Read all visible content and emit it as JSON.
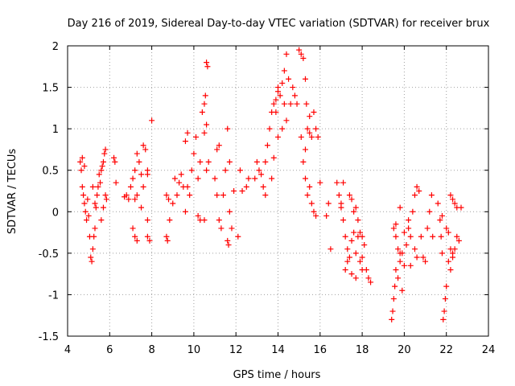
{
  "chart_data": {
    "type": "scatter",
    "title": "Day 216 of 2019, Sidereal Day-to-day VTEC variation (SDTVAR) for receiver brux",
    "xlabel": "GPS time / hours",
    "ylabel": "SDTVAR / TECUs",
    "xlim": [
      4,
      24
    ],
    "ylim": [
      -1.5,
      2
    ],
    "xticks": [
      "4",
      "6",
      "8",
      "10",
      "12",
      "14",
      "16",
      "18",
      "20",
      "22",
      "24"
    ],
    "yticks": [
      "-1.5",
      "-1",
      "-0.5",
      "0",
      "0.5",
      "1",
      "1.5",
      "2"
    ],
    "grid": true,
    "marker": "+",
    "color": "#ff0000",
    "series": [
      {
        "name": "SDTVAR",
        "points": [
          [
            4.6,
            0.6
          ],
          [
            4.65,
            0.5
          ],
          [
            4.7,
            0.3
          ],
          [
            4.75,
            0.2
          ],
          [
            4.8,
            0.1
          ],
          [
            4.85,
            0.0
          ],
          [
            4.9,
            -0.1
          ],
          [
            4.95,
            0.15
          ],
          [
            5.0,
            -0.05
          ],
          [
            5.05,
            -0.3
          ],
          [
            5.1,
            -0.55
          ],
          [
            5.15,
            -0.6
          ],
          [
            5.2,
            -0.45
          ],
          [
            5.25,
            -0.3
          ],
          [
            5.3,
            -0.2
          ],
          [
            5.35,
            0.05
          ],
          [
            5.4,
            0.2
          ],
          [
            5.45,
            0.3
          ],
          [
            5.5,
            0.45
          ],
          [
            5.55,
            0.35
          ],
          [
            5.6,
            0.5
          ],
          [
            5.65,
            0.55
          ],
          [
            5.7,
            0.6
          ],
          [
            5.75,
            0.7
          ],
          [
            5.8,
            0.75
          ],
          [
            5.6,
            -0.1
          ],
          [
            5.7,
            0.05
          ],
          [
            5.8,
            0.2
          ],
          [
            5.85,
            0.15
          ],
          [
            5.2,
            0.3
          ],
          [
            5.3,
            0.1
          ],
          [
            4.7,
            0.65
          ],
          [
            4.8,
            0.55
          ],
          [
            6.2,
            0.65
          ],
          [
            6.25,
            0.6
          ],
          [
            6.3,
            0.35
          ],
          [
            6.7,
            0.18
          ],
          [
            6.8,
            0.2
          ],
          [
            6.9,
            0.15
          ],
          [
            7.0,
            0.3
          ],
          [
            7.1,
            0.4
          ],
          [
            7.2,
            0.5
          ],
          [
            7.3,
            0.7
          ],
          [
            7.4,
            0.6
          ],
          [
            7.1,
            -0.2
          ],
          [
            7.2,
            -0.3
          ],
          [
            7.3,
            -0.35
          ],
          [
            7.6,
            0.8
          ],
          [
            7.7,
            0.75
          ],
          [
            7.8,
            0.5
          ],
          [
            7.5,
            0.45
          ],
          [
            7.6,
            0.3
          ],
          [
            7.2,
            0.15
          ],
          [
            7.3,
            0.2
          ],
          [
            7.5,
            0.05
          ],
          [
            7.8,
            -0.3
          ],
          [
            7.9,
            -0.35
          ],
          [
            7.8,
            -0.1
          ],
          [
            7.8,
            0.45
          ],
          [
            8.0,
            1.1
          ],
          [
            8.7,
            -0.3
          ],
          [
            8.75,
            -0.35
          ],
          [
            8.8,
            0.15
          ],
          [
            8.7,
            0.2
          ],
          [
            8.85,
            -0.1
          ],
          [
            9.0,
            0.1
          ],
          [
            9.1,
            0.4
          ],
          [
            9.2,
            0.2
          ],
          [
            9.3,
            0.35
          ],
          [
            9.4,
            0.45
          ],
          [
            9.5,
            0.3
          ],
          [
            9.6,
            0.0
          ],
          [
            9.7,
            0.3
          ],
          [
            9.8,
            0.2
          ],
          [
            9.9,
            0.5
          ],
          [
            10.0,
            0.7
          ],
          [
            10.1,
            0.9
          ],
          [
            10.2,
            0.4
          ],
          [
            10.3,
            0.6
          ],
          [
            10.4,
            1.2
          ],
          [
            10.5,
            1.3
          ],
          [
            10.55,
            1.4
          ],
          [
            10.6,
            1.05
          ],
          [
            10.7,
            0.6
          ],
          [
            10.5,
            0.95
          ],
          [
            10.6,
            0.5
          ],
          [
            10.2,
            -0.05
          ],
          [
            10.3,
            -0.1
          ],
          [
            10.6,
            1.8
          ],
          [
            10.65,
            1.75
          ],
          [
            10.5,
            -0.1
          ],
          [
            9.6,
            0.85
          ],
          [
            9.7,
            0.95
          ],
          [
            11.0,
            0.4
          ],
          [
            11.1,
            0.2
          ],
          [
            11.2,
            -0.1
          ],
          [
            11.3,
            -0.2
          ],
          [
            11.4,
            0.2
          ],
          [
            11.5,
            0.5
          ],
          [
            11.6,
            -0.35
          ],
          [
            11.65,
            -0.4
          ],
          [
            11.7,
            0.0
          ],
          [
            11.8,
            -0.2
          ],
          [
            11.9,
            0.25
          ],
          [
            11.6,
            1.0
          ],
          [
            11.7,
            0.6
          ],
          [
            11.1,
            0.75
          ],
          [
            11.2,
            0.8
          ],
          [
            12.1,
            -0.3
          ],
          [
            12.2,
            0.5
          ],
          [
            12.3,
            0.25
          ],
          [
            12.5,
            0.3
          ],
          [
            12.6,
            0.4
          ],
          [
            12.9,
            0.4
          ],
          [
            13.0,
            0.6
          ],
          [
            13.1,
            0.5
          ],
          [
            13.2,
            0.45
          ],
          [
            13.3,
            0.3
          ],
          [
            13.4,
            0.6
          ],
          [
            13.5,
            0.8
          ],
          [
            13.6,
            1.0
          ],
          [
            13.7,
            1.2
          ],
          [
            13.8,
            1.3
          ],
          [
            13.9,
            1.2
          ],
          [
            14.0,
            1.45
          ],
          [
            14.1,
            1.4
          ],
          [
            14.2,
            1.55
          ],
          [
            14.3,
            1.7
          ],
          [
            14.4,
            1.9
          ],
          [
            14.5,
            1.6
          ],
          [
            14.6,
            1.3
          ],
          [
            14.7,
            1.5
          ],
          [
            14.8,
            1.4
          ],
          [
            14.9,
            1.3
          ],
          [
            15.0,
            1.95
          ],
          [
            15.1,
            1.9
          ],
          [
            15.2,
            1.85
          ],
          [
            15.3,
            1.6
          ],
          [
            15.35,
            1.3
          ],
          [
            15.4,
            1.0
          ],
          [
            15.5,
            1.15
          ],
          [
            15.6,
            0.9
          ],
          [
            15.7,
            1.2
          ],
          [
            15.8,
            1.0
          ],
          [
            15.9,
            0.9
          ],
          [
            16.0,
            0.35
          ],
          [
            14.3,
            1.3
          ],
          [
            14.4,
            1.1
          ],
          [
            14.0,
            0.9
          ],
          [
            13.8,
            0.65
          ],
          [
            14.2,
            1.0
          ],
          [
            13.4,
            0.2
          ],
          [
            13.7,
            0.4
          ],
          [
            15.1,
            0.9
          ],
          [
            15.2,
            0.6
          ],
          [
            15.3,
            0.4
          ],
          [
            15.4,
            0.2
          ],
          [
            15.5,
            0.3
          ],
          [
            15.6,
            0.1
          ],
          [
            15.7,
            0.0
          ],
          [
            15.8,
            -0.05
          ],
          [
            14.0,
            1.5
          ],
          [
            13.9,
            1.35
          ],
          [
            15.3,
            0.75
          ],
          [
            15.5,
            0.95
          ],
          [
            16.5,
            -0.45
          ],
          [
            16.3,
            -0.05
          ],
          [
            16.4,
            0.1
          ],
          [
            16.9,
            0.2
          ],
          [
            17.0,
            0.05
          ],
          [
            17.1,
            -0.1
          ],
          [
            17.2,
            -0.3
          ],
          [
            17.3,
            -0.45
          ],
          [
            17.4,
            -0.55
          ],
          [
            17.5,
            -0.35
          ],
          [
            17.6,
            -0.25
          ],
          [
            17.7,
            -0.5
          ],
          [
            17.8,
            -0.3
          ],
          [
            17.9,
            -0.6
          ],
          [
            18.0,
            -0.55
          ],
          [
            18.1,
            -0.4
          ],
          [
            18.2,
            -0.7
          ],
          [
            18.3,
            -0.8
          ],
          [
            18.4,
            -0.85
          ],
          [
            17.4,
            0.2
          ],
          [
            17.5,
            0.15
          ],
          [
            17.6,
            0.0
          ],
          [
            17.7,
            0.05
          ],
          [
            17.8,
            -0.1
          ],
          [
            17.9,
            -0.25
          ],
          [
            18.0,
            -0.3
          ],
          [
            17.2,
            -0.7
          ],
          [
            17.3,
            -0.6
          ],
          [
            17.5,
            -0.75
          ],
          [
            17.7,
            -0.8
          ],
          [
            18.0,
            -0.7
          ],
          [
            17.1,
            0.35
          ],
          [
            16.8,
            0.35
          ],
          [
            17.0,
            0.1
          ],
          [
            19.4,
            -1.3
          ],
          [
            19.45,
            -1.2
          ],
          [
            19.5,
            -1.05
          ],
          [
            19.55,
            -0.9
          ],
          [
            19.6,
            -0.7
          ],
          [
            19.7,
            -0.8
          ],
          [
            19.8,
            -0.6
          ],
          [
            19.9,
            -0.5
          ],
          [
            20.0,
            -0.65
          ],
          [
            19.5,
            -0.2
          ],
          [
            19.6,
            -0.3
          ],
          [
            19.7,
            -0.45
          ],
          [
            19.8,
            -0.5
          ],
          [
            20.2,
            -0.2
          ],
          [
            20.3,
            -0.3
          ],
          [
            20.4,
            0.0
          ],
          [
            20.5,
            0.2
          ],
          [
            20.6,
            0.3
          ],
          [
            20.7,
            0.25
          ],
          [
            20.8,
            -0.3
          ],
          [
            20.9,
            -0.55
          ],
          [
            20.5,
            -0.45
          ],
          [
            20.6,
            -0.55
          ],
          [
            20.0,
            -0.25
          ],
          [
            20.1,
            -0.4
          ],
          [
            19.9,
            -0.95
          ],
          [
            20.3,
            -0.65
          ],
          [
            19.6,
            -0.15
          ],
          [
            19.8,
            0.05
          ],
          [
            20.2,
            -0.1
          ],
          [
            21.0,
            -0.6
          ],
          [
            21.1,
            -0.2
          ],
          [
            21.2,
            0.0
          ],
          [
            21.3,
            0.2
          ],
          [
            21.35,
            -0.3
          ],
          [
            21.6,
            0.1
          ],
          [
            21.7,
            -0.1
          ],
          [
            21.75,
            -0.3
          ],
          [
            21.8,
            -0.5
          ],
          [
            21.85,
            -1.3
          ],
          [
            21.9,
            -1.2
          ],
          [
            21.95,
            -1.05
          ],
          [
            22.0,
            -0.9
          ],
          [
            22.1,
            -0.6
          ],
          [
            22.2,
            -0.45
          ],
          [
            22.3,
            -0.55
          ],
          [
            22.4,
            -0.45
          ],
          [
            22.5,
            -0.3
          ],
          [
            22.6,
            -0.35
          ],
          [
            22.2,
            0.2
          ],
          [
            22.3,
            0.15
          ],
          [
            22.4,
            0.1
          ],
          [
            22.5,
            0.05
          ],
          [
            22.7,
            0.05
          ],
          [
            22.2,
            -0.7
          ],
          [
            22.3,
            -0.5
          ],
          [
            21.8,
            -0.05
          ],
          [
            22.0,
            -0.2
          ],
          [
            22.1,
            -0.25
          ]
        ]
      }
    ]
  }
}
